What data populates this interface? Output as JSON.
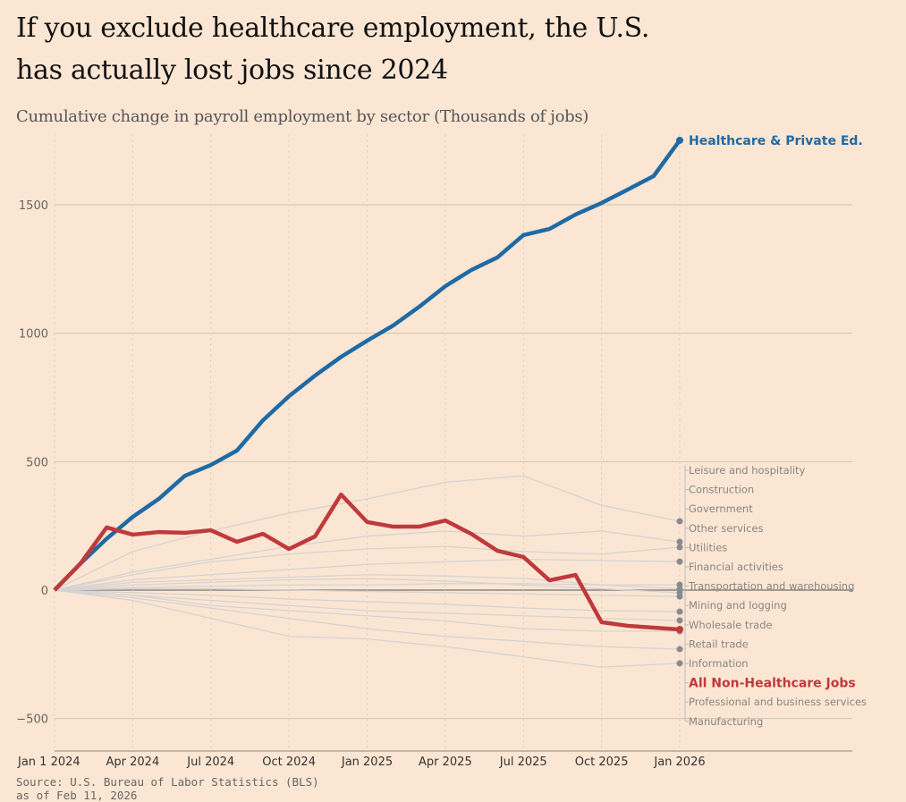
{
  "chart_data": {
    "type": "line",
    "title": "If you exclude healthcare employment, the U.S. has actually lost jobs since 2024",
    "subtitle": "Cumulative change in payroll employment by sector (Thousands of jobs)",
    "source": "Source: U.S. Bureau of Labor Statistics (BLS)",
    "source_note": "as of Feb 11, 2026",
    "xlabel": "",
    "ylabel": "",
    "ylim": [
      -550,
      1750
    ],
    "grid": true,
    "legend": "direct labels at right end of lines",
    "x_ticks": [
      "Jan 1 2024",
      "Apr 2024",
      "Jul 2024",
      "Oct 2024",
      "Jan 2025",
      "Apr 2025",
      "Jul 2025",
      "Oct 2025",
      "Jan 2026"
    ],
    "y_ticks": [
      -500,
      0,
      500,
      1000,
      1500
    ],
    "x": [
      "2024-01",
      "2024-02",
      "2024-03",
      "2024-04",
      "2024-05",
      "2024-06",
      "2024-07",
      "2024-08",
      "2024-09",
      "2024-10",
      "2024-11",
      "2024-12",
      "2025-01",
      "2025-02",
      "2025-03",
      "2025-04",
      "2025-05",
      "2025-06",
      "2025-07",
      "2025-08",
      "2025-09",
      "2025-10",
      "2025-11",
      "2025-12",
      "2026-01"
    ],
    "series": [
      {
        "name": "Healthcare & Private Ed.",
        "color": "#1f6aa5",
        "highlight": true,
        "values": [
          0,
          104,
          200,
          285,
          355,
          445,
          487,
          543,
          661,
          755,
          835,
          908,
          971,
          1030,
          1103,
          1183,
          1246,
          1295,
          1382,
          1406,
          1462,
          1507,
          1559,
          1612,
          1751
        ]
      },
      {
        "name": "All Non-Healthcare Jobs",
        "color": "#c0393b",
        "highlight": true,
        "values": [
          0,
          104,
          244,
          216,
          226,
          223,
          233,
          188,
          219,
          160,
          209,
          372,
          265,
          247,
          247,
          271,
          219,
          153,
          129,
          38,
          59,
          -125,
          -139,
          -146,
          -153
        ]
      }
    ],
    "sector_x_quarterly": [
      "2024-01",
      "2024-04",
      "2024-07",
      "2024-10",
      "2025-01",
      "2025-04",
      "2025-07",
      "2025-10",
      "2026-01"
    ],
    "sectors": [
      {
        "name": "Leisure and hospitality",
        "values": [
          0,
          150,
          230,
          300,
          355,
          420,
          445,
          330,
          268
        ]
      },
      {
        "name": "Construction",
        "values": [
          0,
          60,
          110,
          140,
          160,
          170,
          150,
          140,
          167
        ]
      },
      {
        "name": "Government",
        "values": [
          0,
          70,
          120,
          170,
          210,
          230,
          210,
          230,
          188
        ]
      },
      {
        "name": "Other services",
        "values": [
          0,
          40,
          60,
          80,
          100,
          110,
          120,
          115,
          111
        ]
      },
      {
        "name": "Utilities",
        "values": [
          0,
          10,
          15,
          20,
          20,
          25,
          25,
          20,
          21
        ]
      },
      {
        "name": "Financial activities",
        "values": [
          0,
          30,
          40,
          50,
          60,
          55,
          45,
          20,
          5
        ]
      },
      {
        "name": "Transportation and warehousing",
        "values": [
          0,
          20,
          30,
          40,
          45,
          35,
          20,
          5,
          -10
        ]
      },
      {
        "name": "Mining and logging",
        "values": [
          0,
          5,
          5,
          0,
          -5,
          -10,
          -15,
          -20,
          -25
        ]
      },
      {
        "name": "Wholesale trade",
        "values": [
          0,
          -10,
          -20,
          -35,
          -45,
          -55,
          -70,
          -80,
          -84
        ]
      },
      {
        "name": "Retail trade",
        "values": [
          0,
          -20,
          -40,
          -60,
          -80,
          -90,
          -100,
          -110,
          -118
        ]
      },
      {
        "name": "Information",
        "values": [
          0,
          -30,
          -70,
          -110,
          -150,
          -180,
          -200,
          -220,
          -230
        ]
      },
      {
        "name": "Professional and business services",
        "values": [
          0,
          -40,
          -110,
          -180,
          -190,
          -220,
          -260,
          -300,
          -285
        ]
      },
      {
        "name": "Manufacturing",
        "values": [
          0,
          -20,
          -60,
          -80,
          -100,
          -120,
          -150,
          -160,
          -160
        ]
      }
    ],
    "label_order": [
      "Leisure and hospitality",
      "Construction",
      "Government",
      "Other services",
      "Utilities",
      "Financial activities",
      "Transportation and warehousing",
      "Mining and logging",
      "Wholesale trade",
      "Retail trade",
      "Information",
      "All Non-Healthcare Jobs",
      "Professional and business services",
      "Manufacturing"
    ],
    "colors": {
      "background": "#fbe6d3",
      "sector": "#d6d3d3",
      "grid": "#cfc3b3"
    }
  }
}
